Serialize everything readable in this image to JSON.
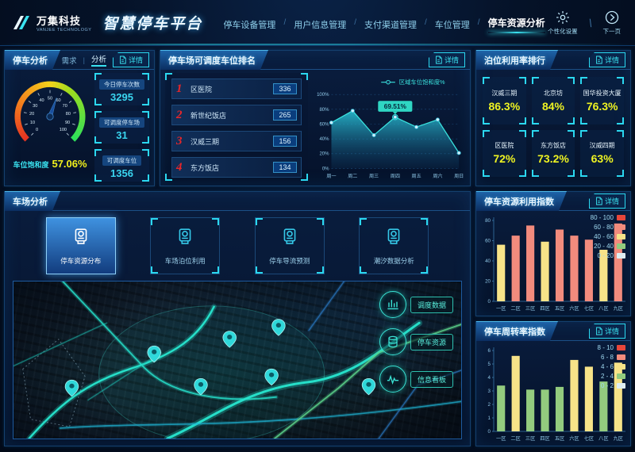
{
  "header": {
    "logo": {
      "name": "万集科技",
      "sub": "VANJEE TECHNOLOGY"
    },
    "title": "智慧停车平台",
    "nav": [
      {
        "label": "停车设备管理",
        "active": false
      },
      {
        "label": "用户信息管理",
        "active": false
      },
      {
        "label": "支付渠道管理",
        "active": false
      },
      {
        "label": "车位管理",
        "active": false
      },
      {
        "label": "停车资源分析",
        "active": true
      }
    ],
    "actions": [
      {
        "label": "个性化设置",
        "icon": "gear-icon"
      },
      {
        "label": "下一页",
        "icon": "next-page-icon"
      }
    ]
  },
  "detail_label": "详情",
  "parking_analysis": {
    "title": "停车分析",
    "tabs": [
      {
        "label": "需求",
        "active": false
      },
      {
        "label": "分析",
        "active": true
      }
    ],
    "gauge": {
      "percent": 57.06,
      "value_label": "57.06%",
      "caption": "车位饱和度",
      "ticks": [
        0,
        10,
        20,
        30,
        40,
        50,
        60,
        70,
        80,
        90,
        100
      ]
    },
    "stats": [
      {
        "label": "今日停车次数",
        "value": "3295"
      },
      {
        "label": "可调度停车场",
        "value": "31"
      },
      {
        "label": "可调度车位",
        "value": "1356"
      }
    ]
  },
  "dispatch_ranking": {
    "title": "停车场可调度车位排名",
    "items": [
      {
        "rank": "1",
        "name": "区医院",
        "value": "336"
      },
      {
        "rank": "2",
        "name": "新世纪饭店",
        "value": "265"
      },
      {
        "rank": "3",
        "name": "汉威三期",
        "value": "156"
      },
      {
        "rank": "4",
        "name": "东方饭店",
        "value": "134"
      }
    ]
  },
  "berth_ranking": {
    "title": "泊位利用率排行",
    "items": [
      {
        "name": "汉威三期",
        "value": "86.3%"
      },
      {
        "name": "北京坊",
        "value": "84%"
      },
      {
        "name": "国华投资大厦",
        "value": "76.3%"
      },
      {
        "name": "区医院",
        "value": "72%"
      },
      {
        "name": "东方饭店",
        "value": "73.2%"
      },
      {
        "name": "汉威四期",
        "value": "63%"
      }
    ]
  },
  "lot_analysis": {
    "title": "车场分析",
    "tabs": [
      {
        "label": "停车资源分布",
        "active": true
      },
      {
        "label": "车场泊位利用",
        "active": false
      },
      {
        "label": "停车导流预测",
        "active": false
      },
      {
        "label": "潮汐数据分析",
        "active": false
      }
    ],
    "map_buttons": [
      {
        "label": "调度数据",
        "icon": "dispatch-data-icon"
      },
      {
        "label": "停车资源",
        "icon": "parking-resource-icon"
      },
      {
        "label": "信息看板",
        "icon": "info-board-icon"
      }
    ]
  },
  "chart_data": [
    {
      "id": "region_saturation_week",
      "type": "area",
      "legend": "区域车位饱和度%",
      "categories": [
        "周一",
        "周二",
        "周三",
        "周四",
        "周五",
        "周六",
        "周日"
      ],
      "values": [
        62,
        78,
        45,
        69.51,
        56,
        66,
        21
      ],
      "ylim": [
        0,
        100
      ],
      "yticks": [
        "0%",
        "20%",
        "40%",
        "60%",
        "80%",
        "100%"
      ],
      "highlight": {
        "index": 3,
        "label": "69.51%"
      }
    },
    {
      "id": "resource_index",
      "type": "bar",
      "title": "停车资源利用指数",
      "categories": [
        "一区",
        "二区",
        "三区",
        "四区",
        "五区",
        "六区",
        "七区",
        "八区",
        "九区"
      ],
      "values": [
        56,
        65,
        75,
        59,
        71,
        65,
        61,
        51,
        77
      ],
      "ylim": [
        0,
        80
      ],
      "yticks": [
        0,
        20,
        40,
        60,
        80
      ],
      "legend": [
        {
          "label": "80 - 100",
          "color": "#e8463a"
        },
        {
          "label": "60 - 80",
          "color": "#f28b7d"
        },
        {
          "label": "40 - 60",
          "color": "#f7e388"
        },
        {
          "label": "20 - 40",
          "color": "#93cb7e"
        },
        {
          "label": "0 - 20",
          "color": "#dfeef2"
        }
      ]
    },
    {
      "id": "turnover_index",
      "type": "bar",
      "title": "停车周转率指数",
      "categories": [
        "一区",
        "二区",
        "三区",
        "四区",
        "五区",
        "六区",
        "七区",
        "八区",
        "九区"
      ],
      "values": [
        3.4,
        5.6,
        3.1,
        3.1,
        3.3,
        5.3,
        4.8,
        3.7,
        5.1
      ],
      "ylim": [
        0,
        6
      ],
      "yticks": [
        0,
        1,
        2,
        3,
        4,
        5,
        6
      ],
      "legend": [
        {
          "label": "8 - 10",
          "color": "#e8463a"
        },
        {
          "label": "6 - 8",
          "color": "#f28b7d"
        },
        {
          "label": "4 - 6",
          "color": "#f7e388"
        },
        {
          "label": "2 - 4",
          "color": "#93cb7e"
        },
        {
          "label": "0 - 2",
          "color": "#dfeef2"
        }
      ]
    }
  ],
  "colors": {
    "accent": "#2bd8f0",
    "yellow_value": "#eef322",
    "rank_red": "#e8262a",
    "bar_salmon": "#f28b7d",
    "bar_yellow": "#f7e388",
    "bar_green": "#93cb7e",
    "map_glow": "#27e6cf"
  }
}
